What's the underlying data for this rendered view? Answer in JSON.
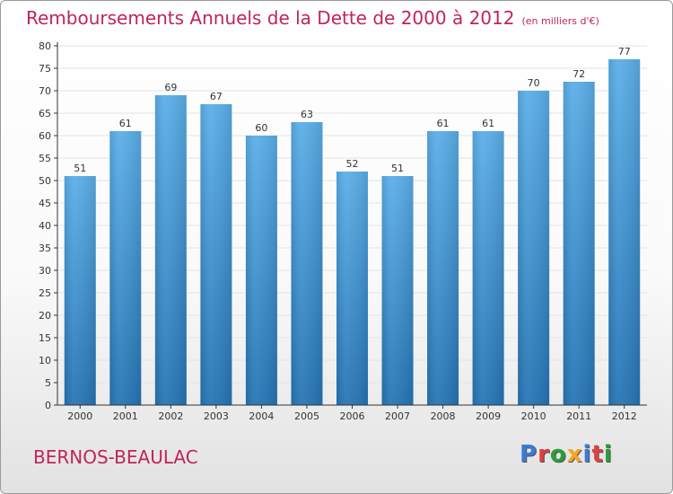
{
  "title": {
    "main": "Remboursements Annuels de la Dette de 2000 à 2012",
    "unit": "(en milliers d'€)"
  },
  "commune": "BERNOS-BEAULAC",
  "logo": {
    "text": "Proxiti",
    "colors": [
      "#3a7bd5",
      "#e04040",
      "#2a9d3a",
      "#f5a623",
      "#3a7bd5",
      "#e04040",
      "#2a9d3a"
    ]
  },
  "colors": {
    "title": "#c0245c",
    "bar_top": "#5aaee8",
    "bar_bottom": "#2574b4",
    "grid": "#e4e4e4",
    "axis": "#333333"
  },
  "chart_data": {
    "type": "bar",
    "categories": [
      "2000",
      "2001",
      "2002",
      "2003",
      "2004",
      "2005",
      "2006",
      "2007",
      "2008",
      "2009",
      "2010",
      "2011",
      "2012"
    ],
    "values": [
      51,
      61,
      69,
      67,
      60,
      63,
      52,
      51,
      61,
      61,
      70,
      72,
      77
    ],
    "title": "Remboursements Annuels de la Dette de 2000 à 2012",
    "xlabel": "",
    "ylabel": "",
    "ylim": [
      0,
      80
    ],
    "ytick_step": 5,
    "grid": true,
    "data_labels": true
  }
}
